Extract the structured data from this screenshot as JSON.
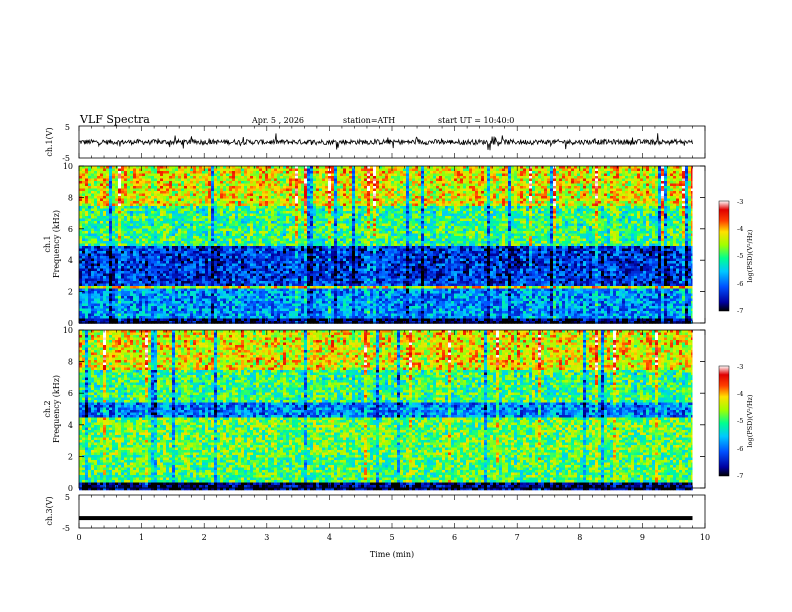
{
  "header": {
    "title": "VLF Spectra",
    "date": "Apr. 5 , 2026",
    "station": "station=ATH",
    "start": "start UT = 10:40:0"
  },
  "chart_data": [
    {
      "type": "line",
      "name": "ch1-waveform",
      "ylabel": "ch.1(V)",
      "ylim": [
        -5,
        5
      ],
      "ytick_labels": [
        "5",
        "-5"
      ],
      "xlim": [
        0,
        10
      ],
      "baseline": 0,
      "noise_amplitude": 0.8,
      "spike_amplitude": 2.2
    },
    {
      "type": "heatmap",
      "name": "ch1-spectrogram",
      "ylabel": "ch.1 Frequency (kHz)",
      "ylim": [
        0,
        10
      ],
      "ytick_labels": [
        "0",
        "2",
        "4",
        "6",
        "8",
        "10"
      ],
      "xlim": [
        0,
        9.8
      ],
      "colorbar": {
        "label": "log(PSD)(V²/Hz)",
        "range": [
          -7,
          -3
        ],
        "tick_labels": [
          "-3",
          "-4",
          "-5",
          "-6",
          "-7"
        ]
      },
      "bands": [
        {
          "freq_khz": [
            0,
            0.4
          ],
          "log_psd": -6.8
        },
        {
          "freq_khz": [
            0.4,
            2.2
          ],
          "log_psd": -5.8
        },
        {
          "freq_khz": [
            2.2,
            2.5
          ],
          "log_psd": -4.3
        },
        {
          "freq_khz": [
            2.5,
            5.0
          ],
          "log_psd": -6.3
        },
        {
          "freq_khz": [
            5.0,
            7.5
          ],
          "log_psd": -5.0
        },
        {
          "freq_khz": [
            7.5,
            10
          ],
          "log_psd": -4.3
        }
      ]
    },
    {
      "type": "heatmap",
      "name": "ch2-spectrogram",
      "ylabel": "ch.2 Frequency (kHz)",
      "ylim": [
        0,
        10
      ],
      "ytick_labels": [
        "0",
        "2",
        "4",
        "6",
        "8",
        "10"
      ],
      "xlim": [
        0,
        9.8
      ],
      "colorbar": {
        "label": "log(PSD)(V²/Hz)",
        "range": [
          -7,
          -3
        ],
        "tick_labels": [
          "-3",
          "-4",
          "-5",
          "-6",
          "-7"
        ]
      },
      "bands": [
        {
          "freq_khz": [
            0,
            0.4
          ],
          "log_psd": -6.8
        },
        {
          "freq_khz": [
            0.4,
            2.2
          ],
          "log_psd": -4.9
        },
        {
          "freq_khz": [
            2.2,
            4.5
          ],
          "log_psd": -4.8
        },
        {
          "freq_khz": [
            4.5,
            5.5
          ],
          "log_psd": -5.9
        },
        {
          "freq_khz": [
            5.5,
            7.5
          ],
          "log_psd": -5.0
        },
        {
          "freq_khz": [
            7.5,
            10
          ],
          "log_psd": -4.3
        }
      ]
    },
    {
      "type": "line",
      "name": "ch3-waveform",
      "ylabel": "ch.3(V)",
      "ylim": [
        -5,
        5
      ],
      "ytick_labels": [
        "5",
        "-5"
      ],
      "xlim": [
        0,
        9.8
      ],
      "baseline": -2
    }
  ],
  "xaxis": {
    "label": "Time (min)",
    "range": [
      0,
      10
    ],
    "tick_labels": [
      "0",
      "1",
      "2",
      "3",
      "4",
      "5",
      "6",
      "7",
      "8",
      "9",
      "10"
    ]
  },
  "colors": {
    "trace": "#000000",
    "colormap": [
      "#000000",
      "#0000a0",
      "#0050ff",
      "#00c8ff",
      "#00ff90",
      "#a0ff00",
      "#ffe000",
      "#ff4000",
      "#e00000",
      "#ffffff"
    ]
  }
}
